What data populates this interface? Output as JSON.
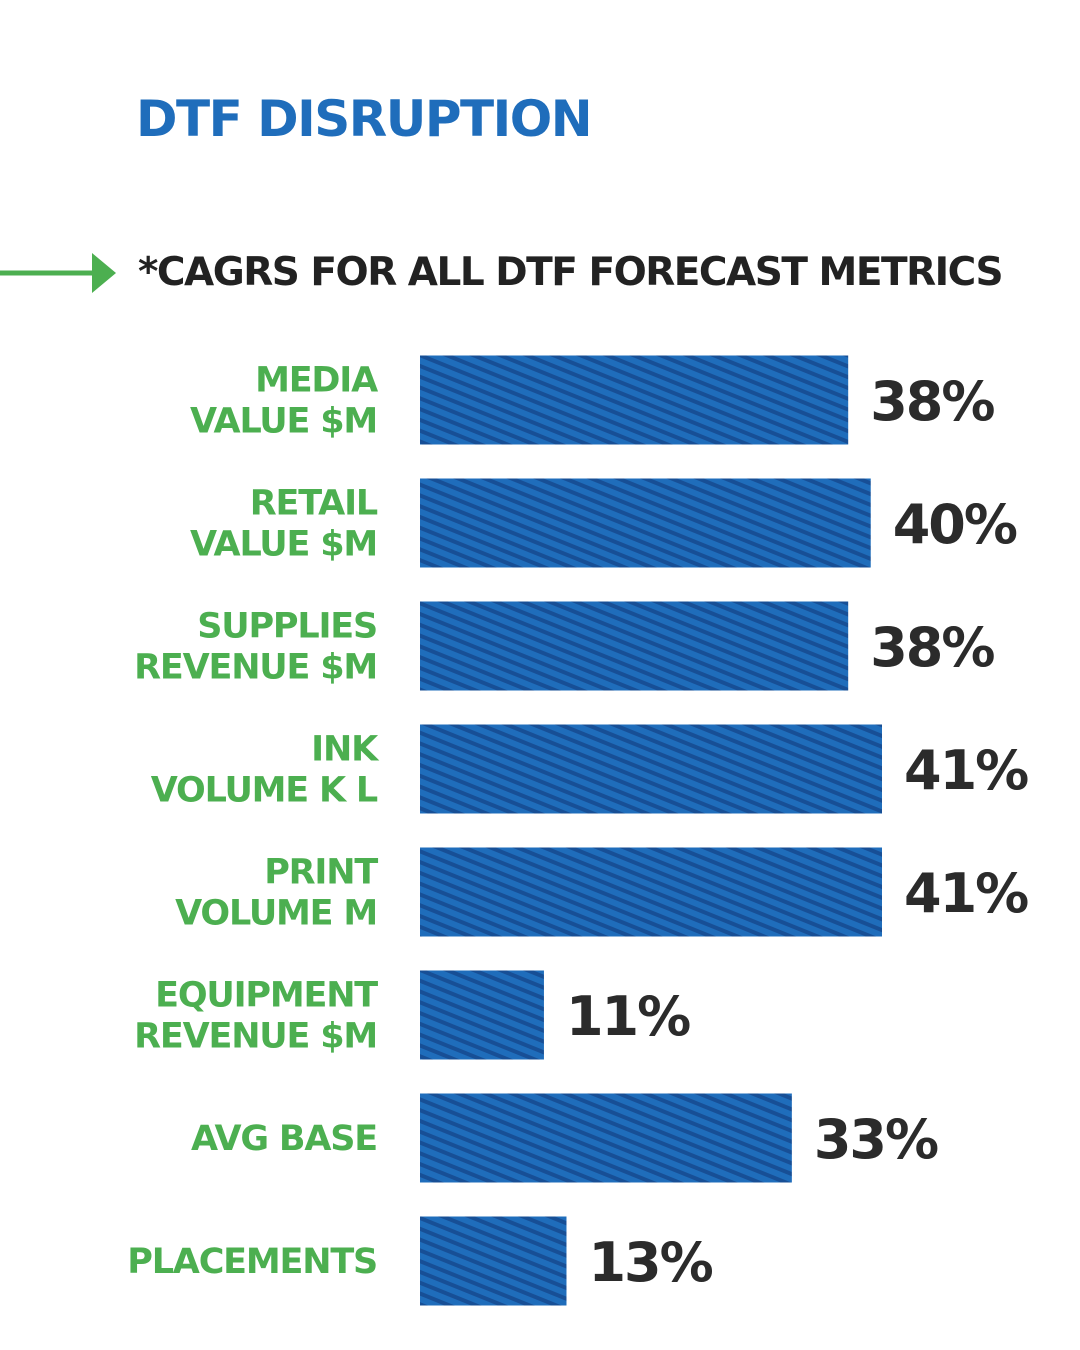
{
  "header": {
    "title": "DTF DISRUPTION",
    "subtitle": "*CAGRS FOR ALL DTF FORECAST METRICS"
  },
  "icons": {
    "arrow": "arrow-right-icon"
  },
  "colors": {
    "title": "#1f6dbb",
    "bar": "#1f6dbb",
    "bar_stripe": "#174f96",
    "category_label": "#4caf50",
    "value_label": "#2b2b2b",
    "arrow": "#4caf50"
  },
  "chart_data": {
    "type": "bar",
    "orientation": "horizontal",
    "title": "*CAGRS FOR ALL DTF FORECAST METRICS",
    "categories": [
      [
        "MEDIA",
        "VALUE $M"
      ],
      [
        "RETAIL",
        "VALUE $M"
      ],
      [
        "SUPPLIES",
        "REVENUE $M"
      ],
      [
        "INK",
        "VOLUME K L"
      ],
      [
        "PRINT",
        "VOLUME M"
      ],
      [
        "EQUIPMENT",
        "REVENUE $M"
      ],
      [
        "AVG BASE"
      ],
      [
        "PLACEMENTS"
      ]
    ],
    "values": [
      38,
      40,
      38,
      41,
      41,
      11,
      33,
      13
    ],
    "value_labels": [
      "38%",
      "40%",
      "38%",
      "41%",
      "41%",
      "11%",
      "33%",
      "13%"
    ],
    "unit": "%",
    "xlim": [
      0,
      41
    ],
    "grid": false,
    "legend": "none",
    "bar_pattern": "diagonal-stripes"
  }
}
